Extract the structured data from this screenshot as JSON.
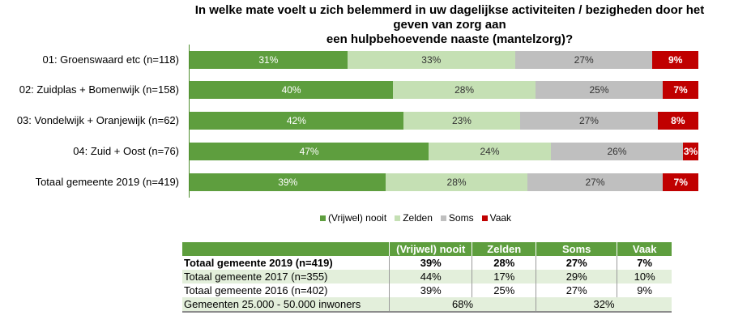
{
  "chart_data": {
    "type": "bar",
    "orientation": "horizontal",
    "stacked": true,
    "title": "In welke mate voelt u zich belemmerd in uw dagelijkse activiteiten / bezigheden door het geven van zorg aan een hulpbehoevende naaste (mantelzorg)?",
    "title_lines": [
      "In welke mate voelt u zich belemmerd in uw dagelijkse activiteiten / bezigheden door het geven van zorg aan",
      "een hulpbehoevende naaste (mantelzorg)?"
    ],
    "categories": [
      "01: Groenswaard etc (n=118)",
      "02: Zuidplas + Bomenwijk (n=158)",
      "03: Vondelwijk + Oranjewijk (n=62)",
      "04: Zuid + Oost (n=76)",
      "Totaal gemeente 2019 (n=419)"
    ],
    "series": [
      {
        "name": "(Vrijwel) nooit",
        "color": "#5e9e3e",
        "label_color": "#ffffff",
        "values": [
          31,
          40,
          42,
          47,
          39
        ]
      },
      {
        "name": "Zelden",
        "color": "#c5e0b4",
        "label_color": "#333333",
        "values": [
          33,
          28,
          23,
          24,
          28
        ]
      },
      {
        "name": "Soms",
        "color": "#bfbfbf",
        "label_color": "#333333",
        "values": [
          27,
          25,
          27,
          26,
          27
        ]
      },
      {
        "name": "Vaak",
        "color": "#c00000",
        "label_color": "#ffffff",
        "values": [
          9,
          7,
          8,
          3,
          7
        ]
      }
    ],
    "value_suffix": "%",
    "xlim": [
      0,
      100
    ],
    "grid": false,
    "legend_position": "bottom"
  },
  "table": {
    "headers": [
      "",
      "(Vrijwel) nooit",
      "Zelden",
      "Soms",
      "Vaak"
    ],
    "rows": [
      {
        "label": "Totaal gemeente 2019 (n=419)",
        "values": [
          "39%",
          "28%",
          "27%",
          "7%"
        ],
        "bold": true
      },
      {
        "label": "Totaal gemeente 2017 (n=355)",
        "values": [
          "44%",
          "17%",
          "29%",
          "10%"
        ]
      },
      {
        "label": "Totaal gemeente 2016 (n=402)",
        "values": [
          "39%",
          "25%",
          "27%",
          "9%"
        ]
      }
    ],
    "benchmark": {
      "label": "Gemeenten 25.000 - 50.000 inwoners",
      "values": [
        "68%",
        "32%"
      ]
    }
  }
}
